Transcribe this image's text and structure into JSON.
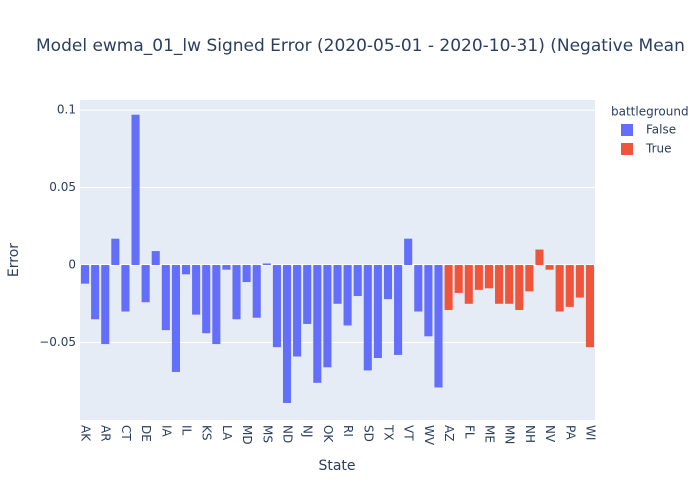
{
  "chart_data": {
    "type": "bar",
    "title": "Model ewma_01_lw Signed Error (2020-05-01 - 2020-10-31) (Negative Mean",
    "x_label": "State",
    "y_label": "Error",
    "legend_title": "battleground",
    "legend_position": "right",
    "categories": [
      "AK",
      null,
      "AR",
      null,
      "CT",
      null,
      "DE",
      null,
      "IA",
      null,
      "IL",
      null,
      "KS",
      null,
      "LA",
      null,
      "MD",
      null,
      "MS",
      null,
      "ND",
      null,
      "NJ",
      null,
      "OK",
      null,
      "RI",
      null,
      "SD",
      null,
      "TX",
      null,
      "VT",
      null,
      "WV",
      null,
      "AZ",
      null,
      "FL",
      null,
      "ME",
      null,
      "MN",
      null,
      "NH",
      null,
      "NV",
      null,
      "PA",
      null,
      "WI"
    ],
    "series": [
      {
        "name": "False",
        "color": "#636efa",
        "values": [
          -0.012,
          -0.035,
          -0.051,
          0.017,
          -0.03,
          0.097,
          -0.024,
          0.009,
          -0.042,
          -0.069,
          -0.006,
          -0.032,
          -0.044,
          -0.051,
          -0.003,
          -0.035,
          -0.011,
          -0.034,
          0.001,
          -0.053,
          -0.089,
          -0.059,
          -0.038,
          -0.076,
          -0.066,
          -0.025,
          -0.039,
          -0.02,
          -0.068,
          -0.06,
          -0.022,
          -0.058,
          0.017,
          -0.03,
          -0.046,
          -0.079,
          null,
          null,
          null,
          null,
          null,
          null,
          null,
          null,
          null,
          null,
          null,
          null,
          null,
          null,
          null
        ]
      },
      {
        "name": "True",
        "color": "#ef553b",
        "values": [
          null,
          null,
          null,
          null,
          null,
          null,
          null,
          null,
          null,
          null,
          null,
          null,
          null,
          null,
          null,
          null,
          null,
          null,
          null,
          null,
          null,
          null,
          null,
          null,
          null,
          null,
          null,
          null,
          null,
          null,
          null,
          null,
          null,
          null,
          null,
          null,
          -0.029,
          -0.018,
          -0.025,
          -0.016,
          -0.015,
          -0.025,
          -0.025,
          -0.029,
          -0.017,
          0.01,
          -0.003,
          -0.03,
          -0.027,
          -0.021,
          -0.053
        ]
      }
    ],
    "ylim": [
      -0.1,
      0.1065
    ],
    "yticks": [
      {
        "value": -0.05,
        "label": "−0.05"
      },
      0,
      0.05,
      0.1
    ],
    "grid": true
  }
}
